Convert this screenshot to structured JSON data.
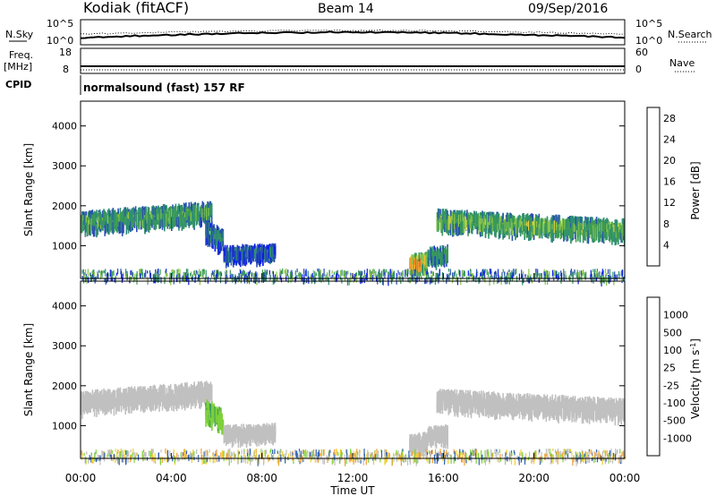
{
  "header": {
    "station": "Kodiak (fitACF)",
    "beam": "Beam 14",
    "date": "09/Sep/2016"
  },
  "strips": {
    "nsky": {
      "label": "N.Sky",
      "ticks": [
        "10^5",
        "10^0"
      ],
      "right_label": "N.Search",
      "right_ticks": [
        "10^5",
        "10^0"
      ]
    },
    "freq": {
      "label_top": "Freq.",
      "label_bottom": "[MHz]",
      "ticks": [
        "18",
        "8"
      ],
      "right_label": "Nave",
      "right_ticks": [
        "60",
        "0"
      ]
    },
    "cpid": {
      "label": "CPID",
      "text": "normalsound (fast) 157 RF"
    }
  },
  "colors": {
    "power_scale": [
      "#0a1ee6",
      "#2a4fb0",
      "#2f8f73",
      "#3c9b55",
      "#86c44a",
      "#eed034",
      "#f19f2b",
      "#eb6a23",
      "#e21e18"
    ],
    "velocity_scale": [
      "#1b3fcc",
      "#2d60b0",
      "#3a9b5c",
      "#7fd13a",
      "#bebebe",
      "#eed034",
      "#f0a030",
      "#eb6a23",
      "#e21e18"
    ],
    "ground_scatter": "#c0c0c0"
  },
  "chart_data": {
    "type": "heatmap",
    "x_axis": {
      "label": "Time UT",
      "range_hours": [
        0,
        24
      ],
      "ticks": [
        "00:00",
        "04:00",
        "08:00",
        "12:00",
        "16:00",
        "20:00",
        "00:00"
      ]
    },
    "y_axis": {
      "label": "Slant Range [km]",
      "range": [
        180,
        4620
      ],
      "ticks": [
        "1000",
        "2000",
        "3000",
        "4000"
      ]
    },
    "panels": [
      {
        "name": "Power",
        "colorbar_label": "Power [dB]",
        "colorbar_ticks": [
          "4",
          "8",
          "12",
          "16",
          "20",
          "24",
          "28"
        ],
        "colorbar_range": [
          0,
          30
        ]
      },
      {
        "name": "Velocity",
        "colorbar_label": "Velocity [m s^-1]",
        "colorbar_ticks": [
          "1000",
          "500",
          "100",
          "25",
          "-25",
          "-100",
          "-500",
          "-1000"
        ]
      }
    ],
    "echo_regions": [
      {
        "t_start": 0.0,
        "t_end": 5.8,
        "range_center_start": 1700,
        "range_center_end": 1950,
        "width_km": 380,
        "power_db": 14,
        "velocity_class": "ground"
      },
      {
        "t_start": 5.5,
        "t_end": 6.3,
        "range_center_start": 1500,
        "range_center_end": 1200,
        "width_km": 420,
        "power_db": 9,
        "velocity_class": "positive"
      },
      {
        "t_start": 6.3,
        "t_end": 8.6,
        "range_center_start": 900,
        "range_center_end": 950,
        "width_km": 250,
        "power_db": 7,
        "velocity_class": "ground"
      },
      {
        "t_start": 14.5,
        "t_end": 15.3,
        "range_center_start": 650,
        "range_center_end": 700,
        "width_km": 320,
        "power_db": 26,
        "velocity_class": "ground"
      },
      {
        "t_start": 15.3,
        "t_end": 16.2,
        "range_center_start": 850,
        "range_center_end": 900,
        "width_km": 280,
        "power_db": 12,
        "velocity_class": "ground"
      },
      {
        "t_start": 15.7,
        "t_end": 24.0,
        "range_center_start": 1750,
        "range_center_end": 1500,
        "width_km": 380,
        "power_db": 16,
        "velocity_class": "ground"
      }
    ],
    "near_range_band": {
      "range_min": 180,
      "range_max": 430,
      "t_start": 0,
      "t_end": 24
    }
  }
}
